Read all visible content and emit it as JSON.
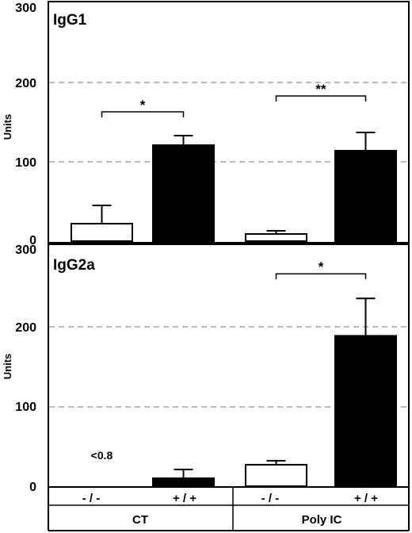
{
  "chart_data": [
    {
      "type": "bar",
      "panel_label": "IgG1",
      "ylabel": "Units",
      "ylim": [
        0,
        300
      ],
      "yticks": [
        "0",
        "100",
        "200",
        "300"
      ],
      "grid": "dashed horizontal at 100 and 200",
      "categories": [
        "- / -",
        "+ / +",
        "- / -",
        "+ / +"
      ],
      "groups": [
        "CT",
        "Poly IC"
      ],
      "values": [
        22,
        121,
        9,
        114
      ],
      "errors": [
        23,
        12,
        4,
        23
      ],
      "bar_colors": [
        "#ffffff",
        "#000000",
        "#ffffff",
        "#000000"
      ],
      "annotations": [
        {
          "from": 0,
          "to": 1,
          "text": "*",
          "y": 163
        },
        {
          "from": 2,
          "to": 3,
          "text": "**",
          "y": 183
        }
      ]
    },
    {
      "type": "bar",
      "panel_label": "IgG2a",
      "ylabel": "Units",
      "ylim": [
        0,
        300
      ],
      "yticks": [
        "0",
        "100",
        "200",
        "300"
      ],
      "grid": "dashed horizontal at 100 and 200",
      "categories": [
        "- / -",
        "+ / +",
        "- / -",
        "+ / +"
      ],
      "groups": [
        "CT",
        "Poly IC"
      ],
      "values": [
        0,
        10,
        27,
        189
      ],
      "errors": [
        0,
        11,
        5,
        47
      ],
      "bar_colors": [
        "#ffffff",
        "#000000",
        "#ffffff",
        "#000000"
      ],
      "value_notes": [
        {
          "index": 0,
          "text": "<0.8"
        }
      ],
      "annotations": [
        {
          "from": 2,
          "to": 3,
          "text": "*",
          "y": 267
        }
      ]
    }
  ]
}
